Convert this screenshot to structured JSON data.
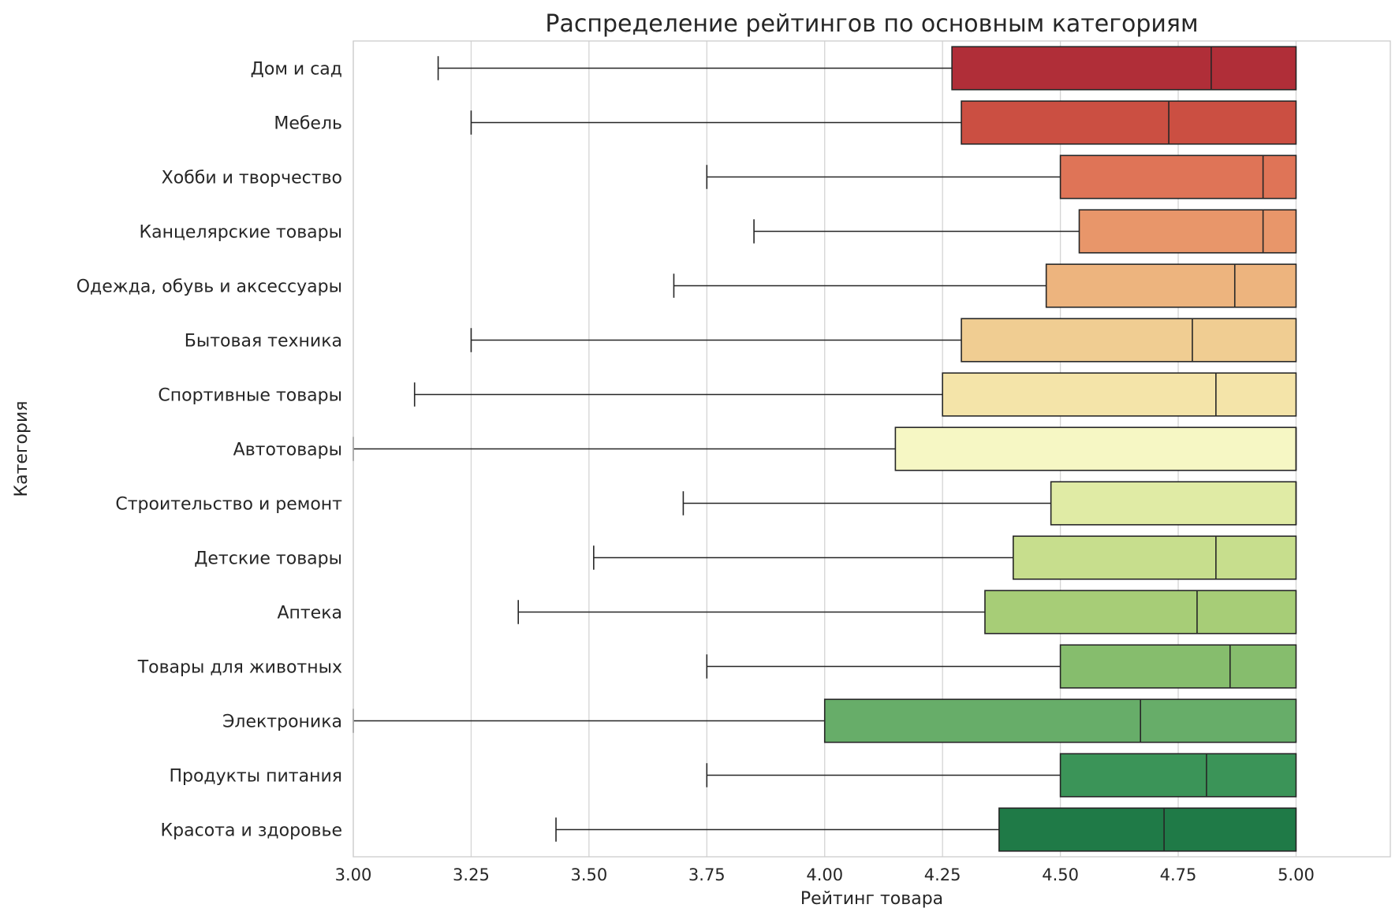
{
  "chart_data": {
    "type": "boxplot",
    "orientation": "horizontal",
    "title": "Распределение рейтингов по основным категориям",
    "xlabel": "Рейтинг товара",
    "ylabel": "Категория",
    "xlim": [
      3.0,
      5.2
    ],
    "xticks": [
      "3.00",
      "3.25",
      "3.50",
      "3.75",
      "4.00",
      "4.25",
      "4.50",
      "4.75",
      "5.00"
    ],
    "grid": "vertical",
    "legend": "none",
    "series": [
      {
        "category": "Дом и сад",
        "whisker_low": 3.18,
        "q1": 4.27,
        "median": 4.82,
        "q3": 5.0,
        "whisker_high": 5.0,
        "color": "#b02e38"
      },
      {
        "category": "Мебель",
        "whisker_low": 3.25,
        "q1": 4.29,
        "median": 4.73,
        "q3": 5.0,
        "whisker_high": 5.0,
        "color": "#cb4f42"
      },
      {
        "category": "Хобби и творчество",
        "whisker_low": 3.75,
        "q1": 4.5,
        "median": 4.93,
        "q3": 5.0,
        "whisker_high": 5.0,
        "color": "#df7457"
      },
      {
        "category": "Канцелярские товары",
        "whisker_low": 3.85,
        "q1": 4.54,
        "median": 4.93,
        "q3": 5.0,
        "whisker_high": 5.0,
        "color": "#e8966a"
      },
      {
        "category": "Одежда, обувь и аксессуары",
        "whisker_low": 3.68,
        "q1": 4.47,
        "median": 4.87,
        "q3": 5.0,
        "whisker_high": 5.0,
        "color": "#edb47e"
      },
      {
        "category": "Бытовая техника",
        "whisker_low": 3.25,
        "q1": 4.29,
        "median": 4.78,
        "q3": 5.0,
        "whisker_high": 5.0,
        "color": "#f0cd92"
      },
      {
        "category": "Спортивные товары",
        "whisker_low": 3.13,
        "q1": 4.25,
        "median": 4.83,
        "q3": 5.0,
        "whisker_high": 5.0,
        "color": "#f4e4a9"
      },
      {
        "category": "Автотовары",
        "whisker_low": 3.0,
        "q1": 4.15,
        "median": 5.0,
        "q3": 5.0,
        "whisker_high": 5.0,
        "color": "#f6f7c4"
      },
      {
        "category": "Строительство и ремонт",
        "whisker_low": 3.7,
        "q1": 4.48,
        "median": 5.0,
        "q3": 5.0,
        "whisker_high": 5.0,
        "color": "#e0eba5"
      },
      {
        "category": "Детские товары",
        "whisker_low": 3.51,
        "q1": 4.4,
        "median": 4.83,
        "q3": 5.0,
        "whisker_high": 5.0,
        "color": "#c7de8d"
      },
      {
        "category": "Аптека",
        "whisker_low": 3.35,
        "q1": 4.34,
        "median": 4.79,
        "q3": 5.0,
        "whisker_high": 5.0,
        "color": "#a7cd77"
      },
      {
        "category": "Товары для животных",
        "whisker_low": 3.75,
        "q1": 4.5,
        "median": 4.86,
        "q3": 5.0,
        "whisker_high": 5.0,
        "color": "#86bd6d"
      },
      {
        "category": "Электроника",
        "whisker_low": 3.0,
        "q1": 4.0,
        "median": 4.67,
        "q3": 5.0,
        "whisker_high": 5.0,
        "color": "#67ad69"
      },
      {
        "category": "Продукты питания",
        "whisker_low": 3.75,
        "q1": 4.5,
        "median": 4.81,
        "q3": 5.0,
        "whisker_high": 5.0,
        "color": "#3b9458"
      },
      {
        "category": "Красота и здоровье",
        "whisker_low": 3.43,
        "q1": 4.37,
        "median": 4.72,
        "q3": 5.0,
        "whisker_high": 5.0,
        "color": "#1f7a47"
      }
    ]
  }
}
